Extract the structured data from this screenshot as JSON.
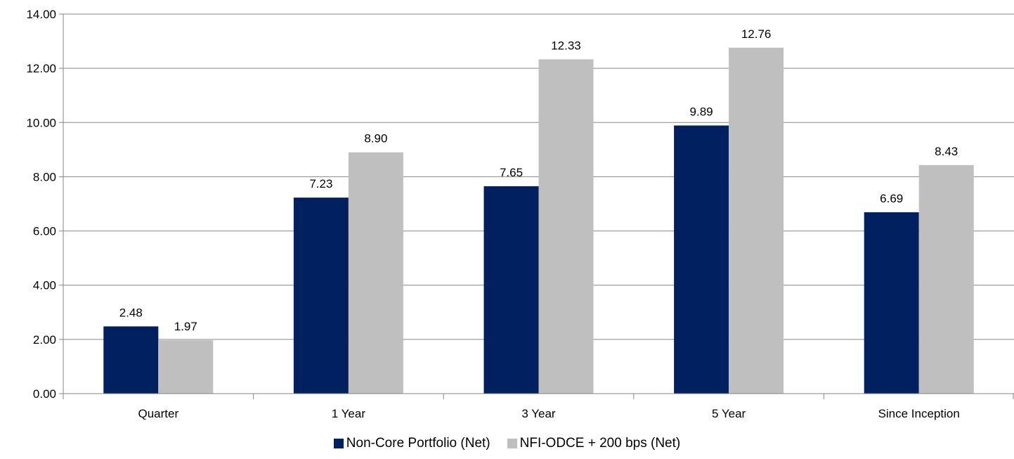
{
  "chart_data": {
    "type": "bar",
    "categories": [
      "Quarter",
      "1 Year",
      "3 Year",
      "5 Year",
      "Since Inception"
    ],
    "series": [
      {
        "name": "Non-Core Portfolio (Net)",
        "values": [
          2.48,
          7.23,
          7.65,
          9.89,
          6.69
        ],
        "color": "#002060"
      },
      {
        "name": "NFI-ODCE + 200 bps (Net)",
        "values": [
          1.97,
          8.9,
          12.33,
          12.76,
          8.43
        ],
        "color": "#bfbfbf"
      }
    ],
    "ylim": [
      0,
      14
    ],
    "yticks": [
      "0.00",
      "2.00",
      "4.00",
      "6.00",
      "8.00",
      "10.00",
      "12.00",
      "14.00"
    ],
    "grid": true,
    "legend_position": "bottom",
    "title": "",
    "xlabel": "",
    "ylabel": ""
  }
}
